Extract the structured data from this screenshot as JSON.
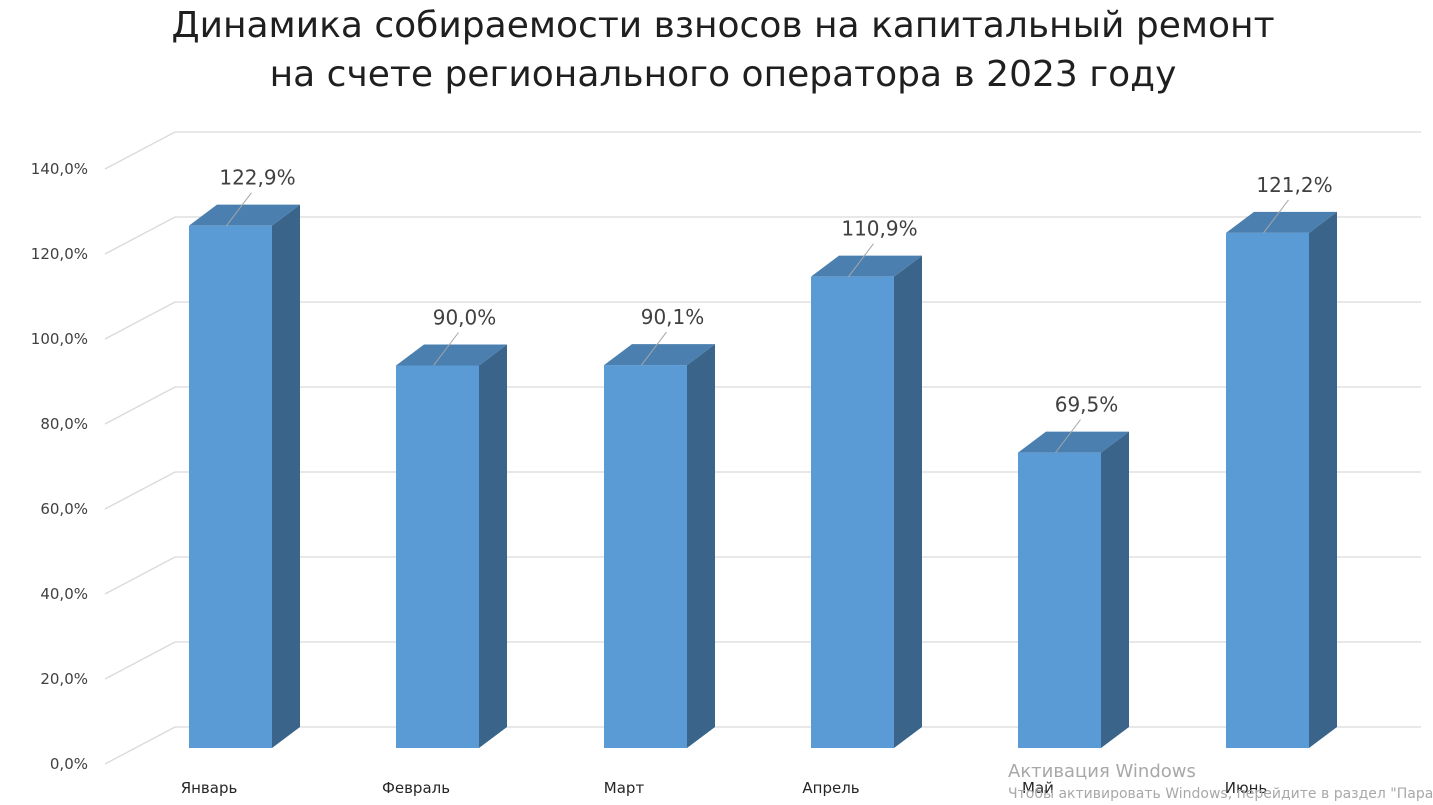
{
  "chart_data": {
    "type": "bar",
    "title": [
      "Динамика собираемости взносов на капитальный ремонт",
      "на счете регионального оператора в 2023 году"
    ],
    "categories": [
      "Январь",
      "Февраль",
      "Март",
      "Апрель",
      "Май",
      "Июнь"
    ],
    "values": [
      122.9,
      90.0,
      90.1,
      110.9,
      69.5,
      121.2
    ],
    "data_labels": [
      "122,9%",
      "90,0%",
      "90,1%",
      "110,9%",
      "69,5%",
      "121,2%"
    ],
    "y_ticks": [
      "0,0%",
      "20,0%",
      "40,0%",
      "60,0%",
      "80,0%",
      "100,0%",
      "120,0%",
      "140,0%"
    ],
    "ylim": [
      0,
      140
    ],
    "xlabel": "",
    "ylabel": "",
    "grid": true,
    "style": "3d-column",
    "colors": {
      "front": "#5b9bd5",
      "side": "#3a6489",
      "top": "#4a7fb0",
      "grid": "#d9d9d9"
    }
  },
  "watermark": {
    "line1": "Активация Windows",
    "line2": "Чтобы активировать Windows, перейдите в раздел \"Парамет"
  }
}
